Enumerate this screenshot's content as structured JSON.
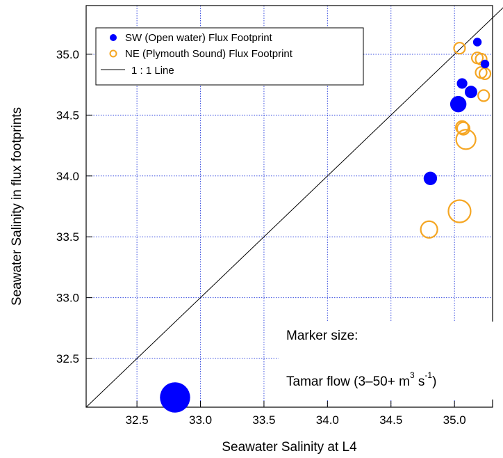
{
  "chart_data": {
    "type": "scatter",
    "xlabel": "Seawater Salinity at L4",
    "ylabel": "Seawater Salinity in flux footprints",
    "xlim": [
      32.1,
      35.3
    ],
    "ylim": [
      32.1,
      35.4
    ],
    "x_ticks": [
      "32.5",
      "33.0",
      "33.5",
      "34.0",
      "34.5",
      "35.0"
    ],
    "y_ticks": [
      "32.5",
      "33.0",
      "33.5",
      "34.0",
      "34.5",
      "35.0"
    ],
    "grid": true,
    "legend_position": "top-left",
    "series": [
      {
        "name": "SW (Open water) Flux Footprint",
        "marker": "filled-circle",
        "color": "#0000ff",
        "points": [
          {
            "x": 32.8,
            "y": 32.18,
            "size": 50
          },
          {
            "x": 34.81,
            "y": 33.98,
            "size": 14
          },
          {
            "x": 35.03,
            "y": 34.59,
            "size": 17
          },
          {
            "x": 35.06,
            "y": 34.76,
            "size": 11
          },
          {
            "x": 35.13,
            "y": 34.69,
            "size": 13
          },
          {
            "x": 35.18,
            "y": 35.1,
            "size": 9
          },
          {
            "x": 35.24,
            "y": 34.92,
            "size": 9
          }
        ]
      },
      {
        "name": "NE (Plymouth Sound) Flux Footprint",
        "marker": "open-circle",
        "color": "#f5a623",
        "points": [
          {
            "x": 35.04,
            "y": 35.05,
            "size": 8
          },
          {
            "x": 35.18,
            "y": 34.97,
            "size": 8
          },
          {
            "x": 35.21,
            "y": 34.96,
            "size": 8
          },
          {
            "x": 35.21,
            "y": 34.85,
            "size": 8
          },
          {
            "x": 35.24,
            "y": 34.84,
            "size": 8
          },
          {
            "x": 35.23,
            "y": 34.66,
            "size": 8
          },
          {
            "x": 35.06,
            "y": 34.4,
            "size": 9
          },
          {
            "x": 35.07,
            "y": 34.39,
            "size": 9
          },
          {
            "x": 35.09,
            "y": 34.3,
            "size": 14
          },
          {
            "x": 35.04,
            "y": 33.71,
            "size": 16
          },
          {
            "x": 34.8,
            "y": 33.56,
            "size": 12
          }
        ]
      },
      {
        "name": "1 : 1 Line",
        "type": "line",
        "color": "#000000",
        "x": [
          32.1,
          35.4
        ],
        "y": [
          32.1,
          35.4
        ]
      }
    ],
    "annotation": {
      "line1": "Marker size:",
      "line2_main": "Tamar flow (3–50+ m",
      "line2_sup1": "3",
      "line2_mid": " s",
      "line2_sup2": "-1",
      "line2_end": ")"
    }
  }
}
